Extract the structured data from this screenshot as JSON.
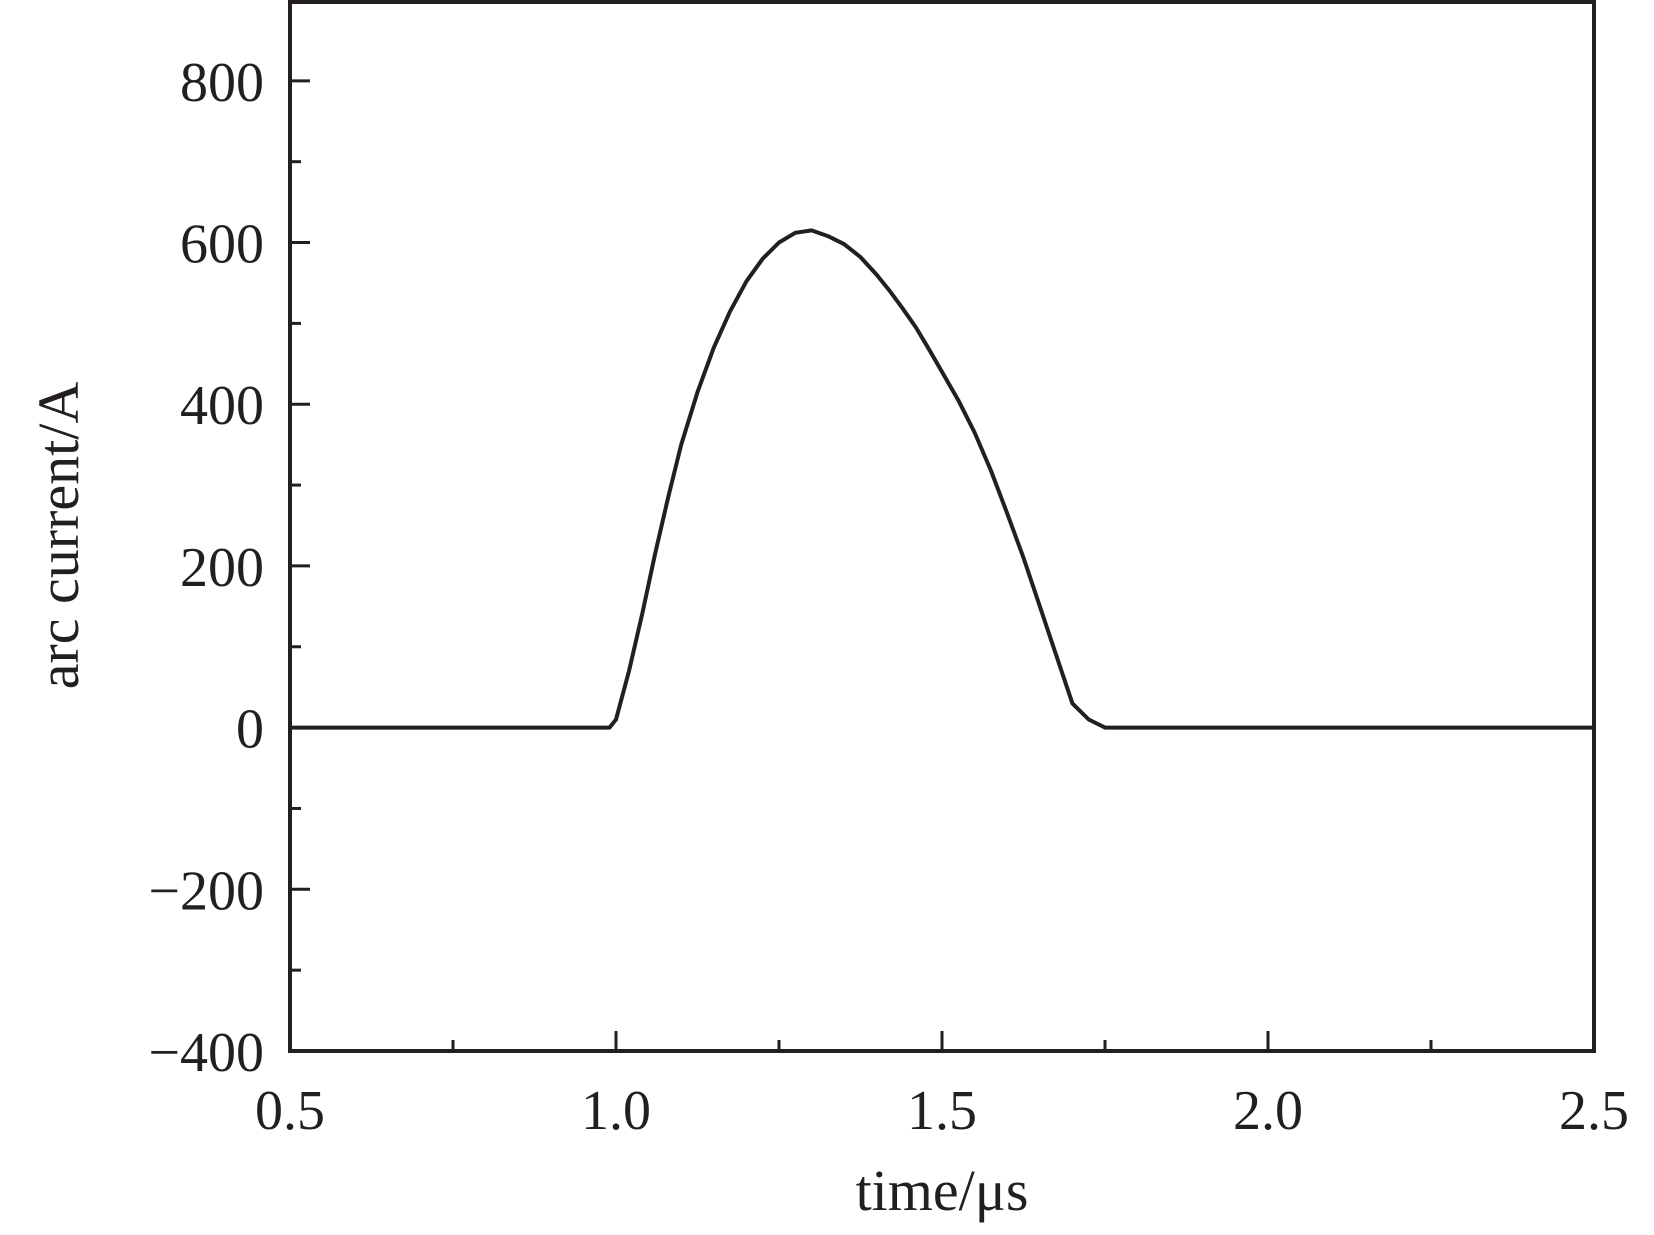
{
  "chart_data": {
    "type": "line",
    "title": "",
    "xlabel": "time/μs",
    "ylabel": "arc current/A",
    "xlim": [
      0.5,
      2.5
    ],
    "ylim": [
      -400,
      900
    ],
    "xticks": [
      0.5,
      1.0,
      1.5,
      2.0,
      2.5
    ],
    "xtick_labels": [
      "0.5",
      "1.0",
      "1.5",
      "2.0",
      "2.5"
    ],
    "yticks": [
      -400,
      -200,
      0,
      200,
      400,
      600,
      800
    ],
    "ytick_labels": [
      "−400",
      "−200",
      "0",
      "200",
      "400",
      "600",
      "800"
    ],
    "grid": false,
    "legend": "none",
    "line_color": "#231f20",
    "series": [
      {
        "x": [
          0.5,
          0.99,
          1.0,
          1.02,
          1.04,
          1.06,
          1.08,
          1.1,
          1.125,
          1.15,
          1.175,
          1.2,
          1.225,
          1.25,
          1.275,
          1.3,
          1.325,
          1.35,
          1.375,
          1.4,
          1.42,
          1.44,
          1.46,
          1.48,
          1.5,
          1.525,
          1.55,
          1.575,
          1.6,
          1.625,
          1.65,
          1.675,
          1.7,
          1.725,
          1.75,
          1.775,
          1.8,
          1.825,
          1.84,
          1.855,
          1.9,
          2.0,
          2.5
        ],
        "y": [
          0,
          0,
          10,
          70,
          140,
          215,
          285,
          350,
          415,
          470,
          515,
          552,
          580,
          600,
          612,
          615,
          608,
          598,
          582,
          560,
          540,
          518,
          495,
          468,
          440,
          405,
          365,
          318,
          265,
          210,
          150,
          90,
          30,
          10,
          0,
          0,
          0,
          0,
          0,
          0,
          0,
          0,
          0
        ]
      }
    ]
  }
}
